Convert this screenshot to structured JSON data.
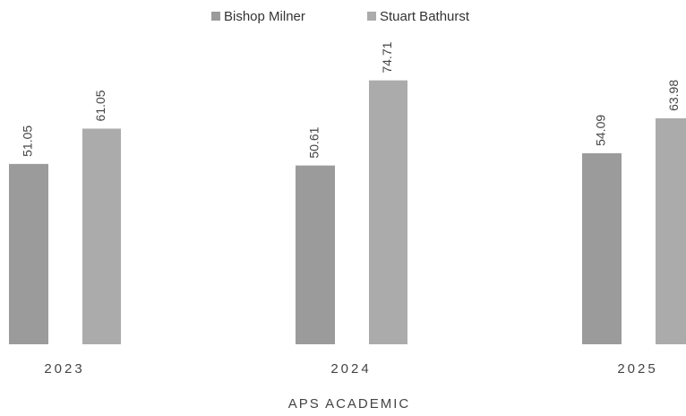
{
  "chart_data": {
    "type": "bar",
    "x_label": "APS ACADEMIC",
    "categories": [
      "2023",
      "2024",
      "2025"
    ],
    "series": [
      {
        "name": "Bishop Milner",
        "color": "#9b9b9b",
        "values": [
          51.05,
          50.61,
          54.09
        ]
      },
      {
        "name": "Stuart Bathurst",
        "color": "#ababab",
        "values": [
          61.05,
          74.71,
          63.98
        ]
      }
    ],
    "ylim": [
      0,
      100
    ],
    "legend": "top"
  }
}
